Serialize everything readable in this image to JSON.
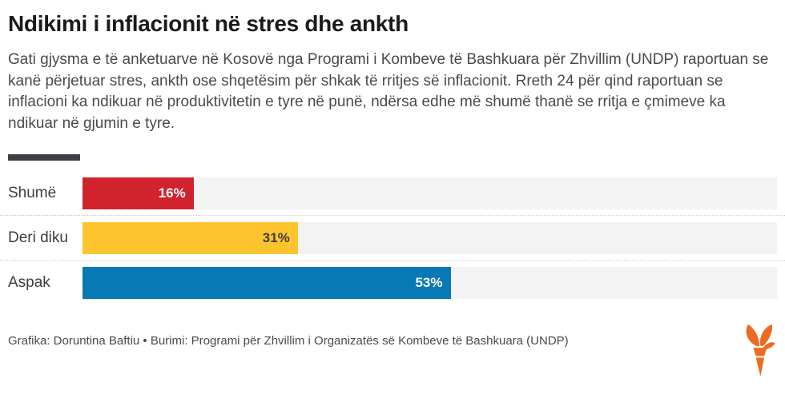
{
  "title": "Ndikimi i inflacionit në stres dhe ankth",
  "description": "Gati gjysma e të anketuarve në Kosovë nga Programi i Kombeve të Bashkuara për Zhvillim (UNDP) raportuan se kanë përjetuar stres, ankth ose shqetësim për shkak të rritjes së inflacionit. Rreth 24 për qind raportuan se inflacioni ka ndikuar në produktivitetin e tyre në punë, ndërsa edhe më shumë thanë se rritja e çmimeve ka ndikuar në gjumin e tyre.",
  "chart_data": {
    "type": "bar",
    "orientation": "horizontal",
    "title": "Ndikimi i inflacionit në stres dhe ankth",
    "categories": [
      "Shumë",
      "Deri diku",
      "Aspak"
    ],
    "values": [
      16,
      31,
      53
    ],
    "value_labels": [
      "16%",
      "31%",
      "53%"
    ],
    "unit": "%",
    "xlim": [
      0,
      100
    ],
    "grid": false,
    "legend_position": "none",
    "bar_colors": [
      "#d0232e",
      "#fdc42d",
      "#0779b5"
    ],
    "value_label_colors": [
      "#ffffff",
      "#3d3d3d",
      "#ffffff"
    ],
    "track_color": "#f3f3f3"
  },
  "footer": {
    "credit": "Grafika: Doruntina Baftiu • Burimi: Programi për Zhvillim i Organizatës së Kombeve të Bashkuara (UNDP)"
  },
  "logo": {
    "name": "rferl-torch-logo",
    "color": "#ed6b21"
  },
  "colors": {
    "accent_divider": "#3c4045",
    "text_primary": "#1a1a1a",
    "text_secondary": "#4a4a4a"
  }
}
